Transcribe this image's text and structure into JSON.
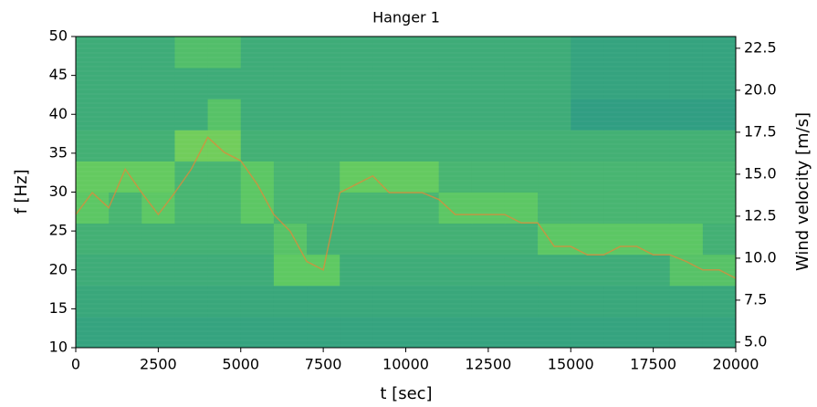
{
  "chart_data": {
    "type": "spectrogram",
    "title": "Hanger 1",
    "x_label": "t [sec]",
    "y_label": "f [Hz]",
    "y2_label": "Wind velocity [m/s]",
    "xlim": [
      0,
      20000
    ],
    "xticks": [
      0,
      2500,
      5000,
      7500,
      10000,
      12500,
      15000,
      17500,
      20000
    ],
    "ylim": [
      10,
      50
    ],
    "yticks": [
      10,
      15,
      20,
      25,
      30,
      35,
      40,
      45,
      50
    ],
    "y2lim": [
      4.67,
      23.2
    ],
    "y2ticks": [
      {
        "value": 5,
        "label": "5.0"
      },
      7.5,
      {
        "value": 10,
        "label": "10.0"
      },
      12.5,
      {
        "value": 15,
        "label": "15.0"
      },
      17.5,
      {
        "value": 20,
        "label": "20.0"
      },
      22.5
    ],
    "colormap": "viridis",
    "zlim": [
      0,
      1
    ],
    "z": [
      [
        0.58,
        0.58,
        0.58,
        0.58,
        0.58,
        0.58,
        0.58,
        0.58,
        0.58,
        0.58,
        0.58,
        0.58,
        0.58,
        0.58,
        0.58,
        0.58,
        0.58,
        0.58,
        0.58,
        0.58
      ],
      [
        0.6,
        0.6,
        0.6,
        0.6,
        0.6,
        0.6,
        0.6,
        0.6,
        0.6,
        0.6,
        0.6,
        0.6,
        0.6,
        0.6,
        0.6,
        0.6,
        0.6,
        0.6,
        0.6,
        0.6
      ],
      [
        0.62,
        0.62,
        0.62,
        0.62,
        0.62,
        0.62,
        0.75,
        0.75,
        0.62,
        0.62,
        0.62,
        0.62,
        0.62,
        0.62,
        0.62,
        0.62,
        0.62,
        0.62,
        0.72,
        0.72
      ],
      [
        0.64,
        0.64,
        0.64,
        0.64,
        0.64,
        0.64,
        0.72,
        0.64,
        0.64,
        0.64,
        0.64,
        0.64,
        0.64,
        0.64,
        0.74,
        0.74,
        0.74,
        0.74,
        0.74,
        0.64
      ],
      [
        0.74,
        0.66,
        0.74,
        0.66,
        0.66,
        0.74,
        0.66,
        0.66,
        0.66,
        0.66,
        0.66,
        0.74,
        0.74,
        0.74,
        0.66,
        0.66,
        0.66,
        0.66,
        0.66,
        0.66
      ],
      [
        0.76,
        0.76,
        0.76,
        0.66,
        0.66,
        0.74,
        0.66,
        0.66,
        0.76,
        0.76,
        0.76,
        0.66,
        0.66,
        0.66,
        0.66,
        0.66,
        0.66,
        0.66,
        0.66,
        0.66
      ],
      [
        0.64,
        0.64,
        0.64,
        0.78,
        0.78,
        0.64,
        0.64,
        0.64,
        0.64,
        0.64,
        0.64,
        0.64,
        0.64,
        0.64,
        0.64,
        0.64,
        0.64,
        0.64,
        0.64,
        0.64
      ],
      [
        0.62,
        0.62,
        0.62,
        0.62,
        0.72,
        0.62,
        0.62,
        0.62,
        0.62,
        0.62,
        0.62,
        0.62,
        0.62,
        0.62,
        0.62,
        0.56,
        0.56,
        0.56,
        0.56,
        0.56
      ],
      [
        0.62,
        0.62,
        0.62,
        0.62,
        0.62,
        0.62,
        0.62,
        0.62,
        0.62,
        0.62,
        0.62,
        0.62,
        0.62,
        0.62,
        0.62,
        0.58,
        0.58,
        0.58,
        0.58,
        0.58
      ],
      [
        0.62,
        0.62,
        0.62,
        0.7,
        0.7,
        0.62,
        0.62,
        0.62,
        0.62,
        0.62,
        0.62,
        0.62,
        0.62,
        0.62,
        0.62,
        0.58,
        0.58,
        0.58,
        0.58,
        0.58
      ]
    ],
    "line": {
      "axis": "y2",
      "color": "#e0883a",
      "x": [
        0,
        500,
        1000,
        1500,
        2000,
        2500,
        3000,
        3500,
        4000,
        4500,
        5000,
        5500,
        6000,
        6500,
        7000,
        7500,
        8000,
        8500,
        9000,
        9500,
        10000,
        10500,
        11000,
        11500,
        12000,
        12500,
        13000,
        13500,
        14000,
        14500,
        15000,
        15500,
        16000,
        16500,
        17000,
        17500,
        18000,
        18500,
        19000,
        19500,
        20000
      ],
      "values": [
        12.6,
        13.9,
        13.0,
        15.3,
        13.9,
        12.6,
        13.9,
        15.3,
        17.2,
        16.3,
        15.8,
        14.4,
        12.6,
        11.6,
        9.8,
        9.3,
        13.9,
        14.4,
        14.9,
        13.9,
        13.9,
        13.9,
        13.5,
        12.6,
        12.6,
        12.6,
        12.6,
        12.1,
        12.1,
        10.7,
        10.7,
        10.2,
        10.2,
        10.7,
        10.7,
        10.2,
        10.2,
        9.8,
        9.3,
        9.3,
        8.8
      ]
    }
  }
}
